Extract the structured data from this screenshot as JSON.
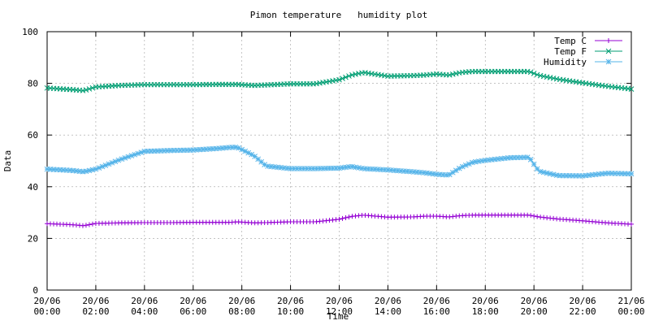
{
  "chart_data": {
    "type": "line",
    "title": "Pimon temperature   humidity plot",
    "xlabel": "Time",
    "ylabel": "Data",
    "xlim": [
      0,
      24
    ],
    "ylim": [
      0,
      100
    ],
    "grid": true,
    "legend_position": "top-right",
    "x_tick_labels": [
      [
        "20/06",
        "00:00"
      ],
      [
        "20/06",
        "02:00"
      ],
      [
        "20/06",
        "04:00"
      ],
      [
        "20/06",
        "06:00"
      ],
      [
        "20/06",
        "08:00"
      ],
      [
        "20/06",
        "10:00"
      ],
      [
        "20/06",
        "12:00"
      ],
      [
        "20/06",
        "14:00"
      ],
      [
        "20/06",
        "16:00"
      ],
      [
        "20/06",
        "18:00"
      ],
      [
        "20/06",
        "20:00"
      ],
      [
        "20/06",
        "22:00"
      ],
      [
        "21/06",
        "00:00"
      ]
    ],
    "y_ticks": [
      0,
      20,
      40,
      60,
      80,
      100
    ],
    "x": [
      0,
      1,
      1.5,
      2,
      3,
      4,
      5,
      6,
      7,
      7.5,
      7.8,
      8.5,
      9,
      10,
      11,
      12,
      12.5,
      13,
      14,
      15,
      15.5,
      16,
      16.5,
      17,
      17.5,
      18,
      19,
      19.8,
      20.2,
      21,
      22,
      23,
      24
    ],
    "series": [
      {
        "name": "Temp C",
        "color": "#9400d3",
        "marker": "plus",
        "values": [
          25.7,
          25.3,
          24.9,
          25.8,
          26.0,
          26.1,
          26.1,
          26.2,
          26.2,
          26.2,
          26.4,
          26.0,
          26.1,
          26.4,
          26.4,
          27.4,
          28.5,
          29.0,
          28.2,
          28.3,
          28.6,
          28.6,
          28.3,
          28.8,
          29.0,
          29.0,
          29.0,
          29.0,
          28.3,
          27.5,
          26.8,
          26.0,
          25.5
        ]
      },
      {
        "name": "Temp F",
        "color": "#009e73",
        "marker": "cross",
        "values": [
          78.2,
          77.6,
          77.2,
          78.6,
          79.2,
          79.5,
          79.5,
          79.5,
          79.6,
          79.6,
          79.6,
          79.2,
          79.4,
          79.8,
          79.8,
          81.4,
          83.2,
          84.2,
          82.8,
          83.0,
          83.2,
          83.6,
          83.2,
          84.2,
          84.6,
          84.6,
          84.6,
          84.6,
          83.1,
          81.6,
          80.2,
          78.9,
          77.8
        ]
      },
      {
        "name": "Humidity",
        "color": "#56b4e9",
        "marker": "star",
        "values": [
          46.8,
          46.3,
          45.8,
          46.8,
          50.5,
          53.7,
          54.0,
          54.2,
          54.8,
          55.2,
          55.3,
          52.0,
          48.0,
          47.0,
          47.0,
          47.2,
          47.8,
          47.0,
          46.5,
          45.8,
          45.4,
          44.8,
          44.5,
          47.5,
          49.5,
          50.2,
          51.2,
          51.4,
          46.0,
          44.3,
          44.2,
          45.2,
          45.0
        ]
      }
    ]
  }
}
